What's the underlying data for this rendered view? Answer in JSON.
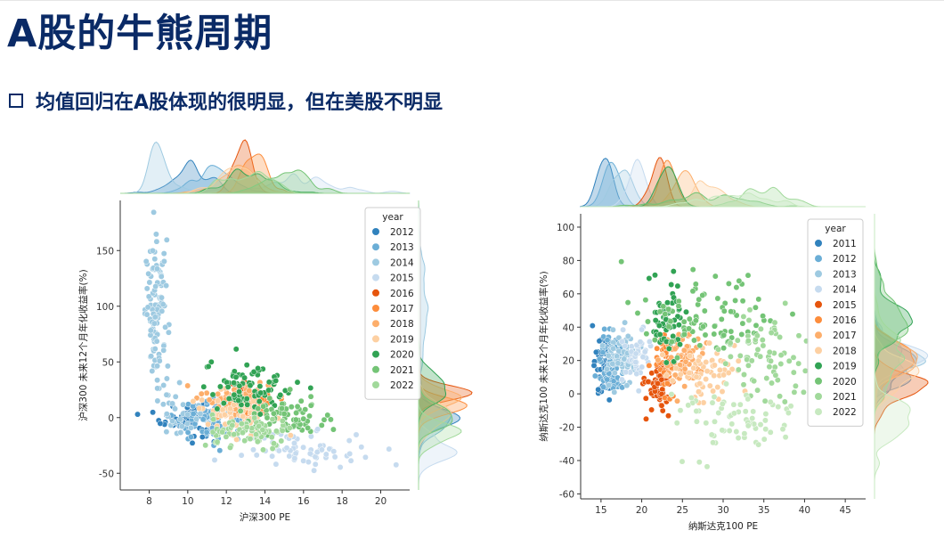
{
  "page": {
    "title": "A股的牛熊周期",
    "subtitle": "均值回归在A股体现的很明显，但在美股不明显"
  },
  "chart_data": [
    {
      "type": "scatter",
      "title": "",
      "xlabel": "沪深300 PE",
      "ylabel": "沪深300 未来12个月年化收益率(%)",
      "xlim": [
        6.5,
        21.5
      ],
      "ylim": [
        -65,
        195
      ],
      "xticks": [
        8,
        10,
        12,
        14,
        16,
        18,
        20
      ],
      "yticks": [
        -50,
        0,
        50,
        100,
        150
      ],
      "legend": {
        "title": "year",
        "placement": "top-right"
      },
      "marginals": "kde",
      "series": [
        {
          "name": "2012",
          "color": "#3182bd",
          "clusters": [
            {
              "x": 10.2,
              "y": 0,
              "sx": 0.8,
              "sy": 8,
              "n": 80
            }
          ]
        },
        {
          "name": "2013",
          "color": "#6baed6",
          "clusters": [
            {
              "x": 11.2,
              "y": -2,
              "sx": 1.0,
              "sy": 9,
              "n": 90
            }
          ]
        },
        {
          "name": "2014",
          "color": "#9ecae1",
          "clusters": [
            {
              "x": 8.4,
              "y": 95,
              "sx": 0.3,
              "sy": 30,
              "n": 110
            },
            {
              "x": 9.5,
              "y": 10,
              "sx": 0.5,
              "sy": 15,
              "n": 30
            }
          ]
        },
        {
          "name": "2015",
          "color": "#c6dbef",
          "clusters": [
            {
              "x": 16.0,
              "y": -28,
              "sx": 1.6,
              "sy": 8,
              "n": 70
            }
          ]
        },
        {
          "name": "2016",
          "color": "#e6550d",
          "clusters": [
            {
              "x": 12.8,
              "y": 20,
              "sx": 0.4,
              "sy": 5,
              "n": 30
            }
          ]
        },
        {
          "name": "2017",
          "color": "#fd8d3c",
          "clusters": [
            {
              "x": 13.5,
              "y": 10,
              "sx": 0.5,
              "sy": 6,
              "n": 50
            }
          ]
        },
        {
          "name": "2018",
          "color": "#fdae6b",
          "clusters": [
            {
              "x": 12.6,
              "y": 18,
              "sx": 0.9,
              "sy": 8,
              "n": 70
            }
          ]
        },
        {
          "name": "2019",
          "color": "#fdd0a2",
          "clusters": [
            {
              "x": 12.4,
              "y": 5,
              "sx": 1.0,
              "sy": 10,
              "n": 60
            }
          ]
        },
        {
          "name": "2020",
          "color": "#31a354",
          "clusters": [
            {
              "x": 13.2,
              "y": 28,
              "sx": 1.2,
              "sy": 12,
              "n": 80
            }
          ]
        },
        {
          "name": "2021",
          "color": "#74c476",
          "clusters": [
            {
              "x": 15.3,
              "y": 0,
              "sx": 1.2,
              "sy": 8,
              "n": 70
            }
          ]
        },
        {
          "name": "2022",
          "color": "#a1d99b",
          "clusters": [
            {
              "x": 13.2,
              "y": -15,
              "sx": 1.1,
              "sy": 8,
              "n": 70
            }
          ]
        }
      ]
    },
    {
      "type": "scatter",
      "title": "",
      "xlabel": "纳斯达克100 PE",
      "ylabel": "纳斯达克100 未来12个月年化收益率(%)",
      "xlim": [
        12.5,
        47.5
      ],
      "ylim": [
        -63,
        108
      ],
      "xticks": [
        15,
        20,
        25,
        30,
        35,
        40,
        45
      ],
      "yticks": [
        -60,
        -40,
        -20,
        0,
        20,
        40,
        60,
        80,
        100
      ],
      "legend": {
        "title": "year",
        "placement": "top-right"
      },
      "marginals": "kde",
      "series": [
        {
          "name": "2011",
          "color": "#3182bd",
          "clusters": [
            {
              "x": 15.5,
              "y": 15,
              "sx": 0.7,
              "sy": 9,
              "n": 60
            }
          ]
        },
        {
          "name": "2012",
          "color": "#6baed6",
          "clusters": [
            {
              "x": 16.5,
              "y": 18,
              "sx": 0.8,
              "sy": 9,
              "n": 70
            }
          ]
        },
        {
          "name": "2013",
          "color": "#9ecae1",
          "clusters": [
            {
              "x": 17.5,
              "y": 22,
              "sx": 1.0,
              "sy": 9,
              "n": 60
            }
          ]
        },
        {
          "name": "2014",
          "color": "#c6dbef",
          "clusters": [
            {
              "x": 19.5,
              "y": 22,
              "sx": 0.9,
              "sy": 9,
              "n": 50
            }
          ]
        },
        {
          "name": "2015",
          "color": "#e6550d",
          "clusters": [
            {
              "x": 22.0,
              "y": 5,
              "sx": 0.8,
              "sy": 7,
              "n": 60
            }
          ]
        },
        {
          "name": "2016",
          "color": "#fd8d3c",
          "clusters": [
            {
              "x": 23.0,
              "y": 18,
              "sx": 0.8,
              "sy": 8,
              "n": 50
            }
          ]
        },
        {
          "name": "2017",
          "color": "#fdae6b",
          "clusters": [
            {
              "x": 25.5,
              "y": 20,
              "sx": 1.2,
              "sy": 9,
              "n": 60
            }
          ]
        },
        {
          "name": "2018",
          "color": "#fdd0a2",
          "clusters": [
            {
              "x": 28.0,
              "y": 10,
              "sx": 2.0,
              "sy": 10,
              "n": 60
            }
          ]
        },
        {
          "name": "2019",
          "color": "#31a354",
          "clusters": [
            {
              "x": 23.0,
              "y": 45,
              "sx": 1.0,
              "sy": 12,
              "n": 60
            }
          ]
        },
        {
          "name": "2020",
          "color": "#74c476",
          "clusters": [
            {
              "x": 28.0,
              "y": 45,
              "sx": 4.0,
              "sy": 12,
              "n": 90
            }
          ]
        },
        {
          "name": "2021",
          "color": "#a1d99b",
          "clusters": [
            {
              "x": 35.0,
              "y": 20,
              "sx": 3.0,
              "sy": 14,
              "n": 70
            }
          ]
        },
        {
          "name": "2022",
          "color": "#c7e9c0",
          "clusters": [
            {
              "x": 31.0,
              "y": -15,
              "sx": 3.5,
              "sy": 10,
              "n": 70
            }
          ]
        }
      ]
    }
  ]
}
